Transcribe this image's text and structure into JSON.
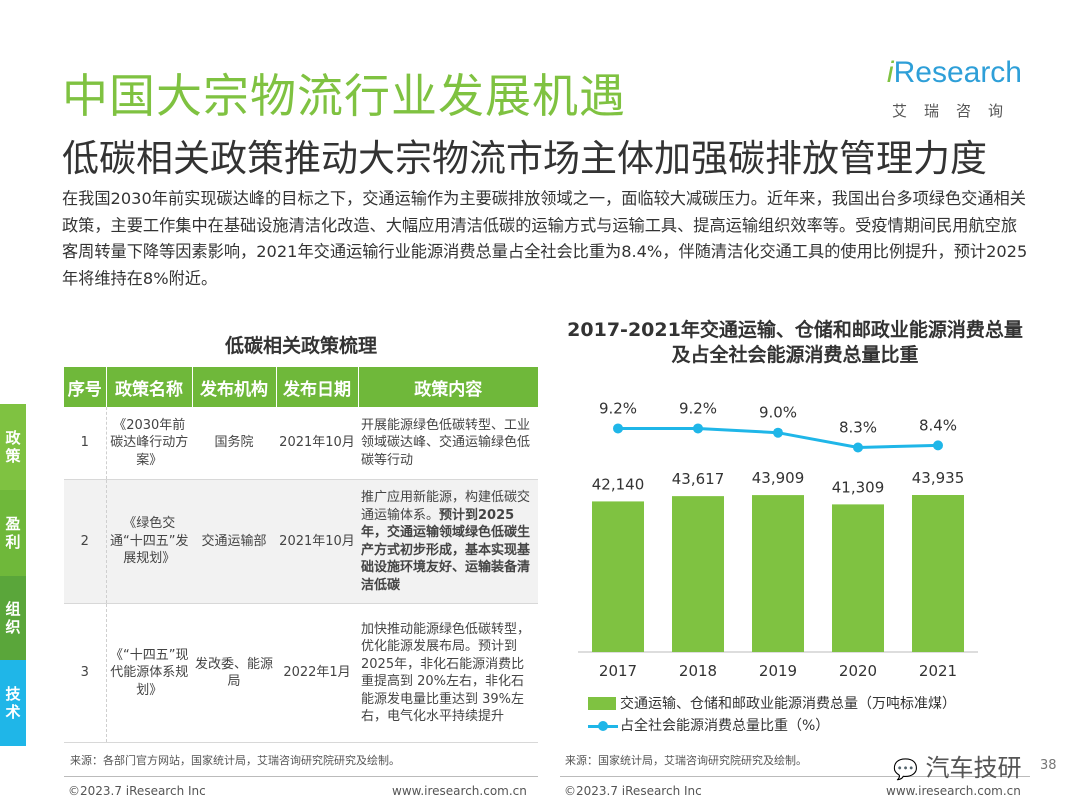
{
  "header": {
    "title": "中国大宗物流行业发展机遇",
    "subtitle": "低碳相关政策推动大宗物流市场主体加强碳排放管理力度",
    "logo_brand_i": "i",
    "logo_brand_rest": "Research",
    "logo_cn": "艾瑞咨询"
  },
  "intro": "在我国2030年前实现碳达峰的目标之下，交通运输作为主要碳排放领域之一，面临较大减碳压力。近年来，我国出台多项绿色交通相关政策，主要工作集中在基础设施清洁化改造、大幅应用清洁低碳的运输方式与运输工具、提高运输组织效率等。受疫情期间民用航空旅客周转量下降等因素影响，2021年交通运输行业能源消费总量占全社会比重为8.4%，伴随清洁化交通工具的使用比例提升，预计2025年将维持在8%附近。",
  "side_tabs": [
    {
      "label": "政策",
      "color": "#7fc241"
    },
    {
      "label": "盈利",
      "color": "#6fb83a"
    },
    {
      "label": "组织",
      "color": "#5aa63a"
    },
    {
      "label": "技术",
      "color": "#1fb6e8"
    }
  ],
  "policy_table": {
    "title": "低碳相关政策梳理",
    "headers": [
      "序号",
      "政策名称",
      "发布机构",
      "发布日期",
      "政策内容"
    ],
    "rows": [
      {
        "no": "1",
        "name": "《2030年前碳达峰行动方案》",
        "org": "国务院",
        "date": "2021年10月",
        "content_normal": "开展能源绿色低碳转型、工业领域碳达峰、交通运输绿色低碳等行动",
        "content_bold": ""
      },
      {
        "no": "2",
        "name": "《绿色交通“十四五”发展规划》",
        "org": "交通运输部",
        "date": "2021年10月",
        "content_normal": "推广应用新能源，构建低碳交通运输体系。",
        "content_bold": "预计到2025年，交通运输领域绿色低碳生产方式初步形成，基本实现基础设施环境友好、运输装备清洁低碳"
      },
      {
        "no": "3",
        "name": "《“十四五”现代能源体系规划》",
        "org": "发改委、能源局",
        "date": "2022年1月",
        "content_normal": "加快推动能源绿色低碳转型，优化能源发展布局。预计到 2025年，非化石能源消费比重提高到 20%左右，非化石能源发电量比重达到 39%左右，电气化水平持续提升",
        "content_bold": ""
      }
    ],
    "source": "来源：各部门官方网站，国家统计局，艾瑞咨询研究院研究及绘制。"
  },
  "chart_data": {
    "type": "bar",
    "title": "2017-2021年交通运输、仓储和邮政业能源消费总量及占全社会能源消费总量比重",
    "categories": [
      "2017",
      "2018",
      "2019",
      "2020",
      "2021"
    ],
    "series": [
      {
        "name": "交通运输、仓储和邮政业能源消费总量（万吨标准煤）",
        "type": "bar",
        "values": [
          42140,
          43617,
          43909,
          41309,
          43935
        ],
        "labels": [
          "42,140",
          "43,617",
          "43,909",
          "41,309",
          "43,935"
        ],
        "color": "#7fc241"
      },
      {
        "name": "占全社会能源消费总量比重（%）",
        "type": "line",
        "values": [
          9.2,
          9.2,
          9.0,
          8.3,
          8.4
        ],
        "labels": [
          "9.2%",
          "9.2%",
          "9.0%",
          "8.3%",
          "8.4%"
        ],
        "color": "#1fb6e8"
      }
    ],
    "legend_position": "bottom",
    "grid": false
  },
  "chart_source": "来源：国家统计局，艾瑞咨询研究院研究及绘制。",
  "footer": {
    "left_copyright": "©2023.7 iResearch Inc",
    "left_url": "www.iresearch.com.cn",
    "right_copyright": "©2023.7 iResearch Inc",
    "right_url": "www.iresearch.com.cn",
    "wechat": "汽车技研",
    "page": "38"
  }
}
